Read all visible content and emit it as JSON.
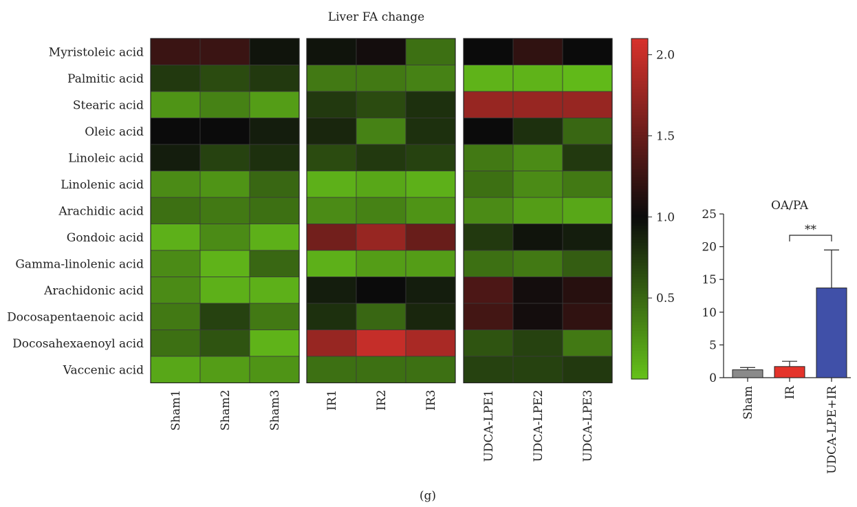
{
  "panel_label": "(g)",
  "chart_data": [
    {
      "type": "heatmap",
      "title": "Liver FA change",
      "rows": [
        "Myristoleic acid",
        "Palmitic acid",
        "Stearic acid",
        "Oleic acid",
        "Linoleic acid",
        "Linolenic acid",
        "Arachidic acid",
        "Gondoic acid",
        "Gamma-linolenic acid",
        "Arachidonic acid",
        "Docosapentaenoic acid",
        "Docosahexaenoyl acid",
        "Vaccenic acid"
      ],
      "groups": [
        {
          "columns": [
            "Sham1",
            "Sham2",
            "Sham3"
          ]
        },
        {
          "columns": [
            "IR1",
            "IR2",
            "IR3"
          ]
        },
        {
          "columns": [
            "UDCA-LPE1",
            "UDCA-LPE2",
            "UDCA-LPE3"
          ]
        }
      ],
      "values": [
        [
          1.25,
          1.25,
          0.95,
          0.95,
          1.05,
          0.45,
          1.0,
          1.2,
          1.0
        ],
        [
          0.75,
          0.65,
          0.75,
          0.4,
          0.4,
          0.35,
          0.08,
          0.08,
          0.05
        ],
        [
          0.25,
          0.35,
          0.2,
          0.75,
          0.65,
          0.8,
          1.75,
          1.75,
          1.75
        ],
        [
          1.0,
          1.0,
          0.9,
          0.85,
          0.35,
          0.8,
          1.0,
          0.8,
          0.5
        ],
        [
          0.9,
          0.7,
          0.8,
          0.65,
          0.75,
          0.7,
          0.4,
          0.3,
          0.75
        ],
        [
          0.3,
          0.25,
          0.5,
          0.1,
          0.15,
          0.1,
          0.45,
          0.3,
          0.4
        ],
        [
          0.45,
          0.4,
          0.45,
          0.3,
          0.35,
          0.25,
          0.3,
          0.2,
          0.15
        ],
        [
          0.1,
          0.3,
          0.1,
          1.55,
          1.75,
          1.5,
          0.75,
          0.95,
          0.9
        ],
        [
          0.3,
          0.08,
          0.5,
          0.1,
          0.2,
          0.2,
          0.45,
          0.4,
          0.55
        ],
        [
          0.3,
          0.1,
          0.1,
          0.9,
          1.0,
          0.9,
          1.35,
          1.05,
          1.15
        ],
        [
          0.4,
          0.7,
          0.4,
          0.8,
          0.5,
          0.85,
          1.3,
          1.05,
          1.2
        ],
        [
          0.45,
          0.6,
          0.08,
          1.75,
          2.0,
          1.85,
          0.6,
          0.7,
          0.4
        ],
        [
          0.15,
          0.2,
          0.25,
          0.45,
          0.45,
          0.45,
          0.7,
          0.7,
          0.75
        ]
      ],
      "colorbar": {
        "range": [
          0.0,
          2.1
        ],
        "ticks": [
          "0.5",
          "1.0",
          "1.5",
          "2.0"
        ],
        "colors": {
          "low": "#66c21a",
          "mid": "#0b0b0b",
          "high": "#d8322c"
        },
        "mid_value": 1.0
      }
    },
    {
      "type": "bar",
      "title": "OA/PA",
      "categories": [
        "Sham",
        "IR",
        "UDCA-LPE+IR"
      ],
      "values": [
        1.2,
        1.7,
        13.7
      ],
      "errors": [
        0.35,
        0.8,
        5.8
      ],
      "colors": [
        "#8a8a8a",
        "#e4332a",
        "#4050a8"
      ],
      "ylim": [
        0,
        25
      ],
      "yticks": [
        "0",
        "5",
        "10",
        "15",
        "20",
        "25"
      ],
      "significance": {
        "from": "IR",
        "to": "UDCA-LPE+IR",
        "label": "**"
      }
    }
  ]
}
